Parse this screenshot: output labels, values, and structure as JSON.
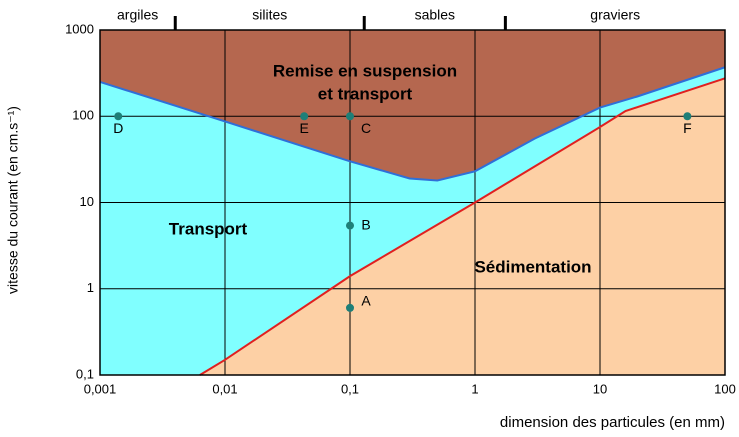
{
  "chart_data": {
    "type": "hjulstrom",
    "xlabel": "dimension des particules (en mm)",
    "ylabel": "vitesse du courant (en cm.s⁻¹)",
    "log_x": true,
    "log_y": true,
    "grid": true,
    "xlim": [
      0.001,
      100
    ],
    "ylim": [
      0.1,
      1000
    ],
    "xticks": [
      {
        "value": 0.001,
        "label": "0,001"
      },
      {
        "value": 0.01,
        "label": "0,01"
      },
      {
        "value": 0.1,
        "label": "0,1"
      },
      1,
      10,
      100
    ],
    "yticks": [
      {
        "value": 0.1,
        "label": "0,1"
      },
      1,
      10,
      100,
      1000
    ],
    "zones": {
      "labels": [
        "argiles",
        "silites",
        "sables",
        "graviers"
      ],
      "boundaries": [
        0.004,
        0.13,
        1.75
      ]
    },
    "regions": {
      "suspension": [
        "Remise en suspension",
        "et transport"
      ],
      "transport": "Transport",
      "sedimentation": "Sédimentation"
    },
    "colors": {
      "suspension": "#b5674f",
      "transport": "#80ffff",
      "sedimentation": "#fdd0a5",
      "erosion_line": "#2f6fd8",
      "sedimentation_line": "#e02020",
      "points": "#1e7f78"
    },
    "erosion_curve": {
      "x": [
        0.001,
        0.01,
        0.1,
        0.3,
        0.5,
        1,
        3,
        10,
        20,
        100
      ],
      "values": [
        250,
        87,
        30,
        19,
        18,
        23,
        55,
        126,
        170,
        370
      ]
    },
    "sedimentation_curve": {
      "x": [
        0.0063,
        0.01,
        0.1,
        1,
        10,
        16,
        100
      ],
      "values": [
        0.1,
        0.15,
        1.4,
        10,
        75,
        115,
        275
      ]
    },
    "points": {
      "labels": [
        "A",
        "B",
        "C",
        "D",
        "E",
        "F"
      ],
      "x": [
        0.1,
        0.1,
        0.1,
        0.0014,
        0.043,
        50
      ],
      "values": [
        0.6,
        5.4,
        100,
        100,
        100,
        100
      ]
    }
  }
}
